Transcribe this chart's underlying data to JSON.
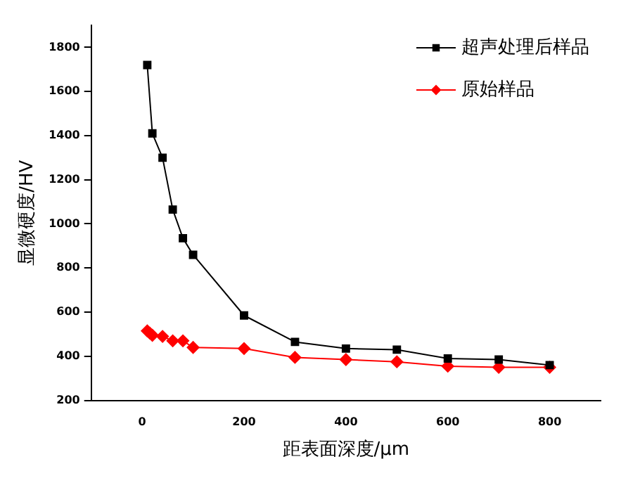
{
  "chart_data": {
    "type": "line",
    "xlabel": "距表面深度/μm",
    "ylabel": "显微硬度/HV",
    "xlim": [
      -100,
      900
    ],
    "xticks": [
      0,
      200,
      400,
      600,
      800
    ],
    "ylim": [
      200,
      1900
    ],
    "yticks": [
      200,
      400,
      600,
      800,
      1000,
      1200,
      1400,
      1600,
      1800
    ],
    "grid": false,
    "legend": "top right",
    "line_style": "solid",
    "series": [
      {
        "name": "超声处理后样品",
        "color": "#000000",
        "marker": "square",
        "x": [
          10,
          20,
          40,
          60,
          80,
          100,
          200,
          300,
          400,
          500,
          600,
          700,
          800
        ],
        "values": [
          1720,
          1410,
          1300,
          1065,
          935,
          860,
          585,
          465,
          435,
          430,
          390,
          385,
          360
        ]
      },
      {
        "name": "原始样品",
        "color": "#ff0000",
        "marker": "diamond",
        "x": [
          10,
          15,
          20,
          40,
          60,
          80,
          100,
          200,
          300,
          400,
          500,
          600,
          700,
          800
        ],
        "values": [
          515,
          505,
          495,
          490,
          470,
          470,
          440,
          435,
          395,
          385,
          375,
          355,
          350,
          350
        ]
      }
    ]
  }
}
